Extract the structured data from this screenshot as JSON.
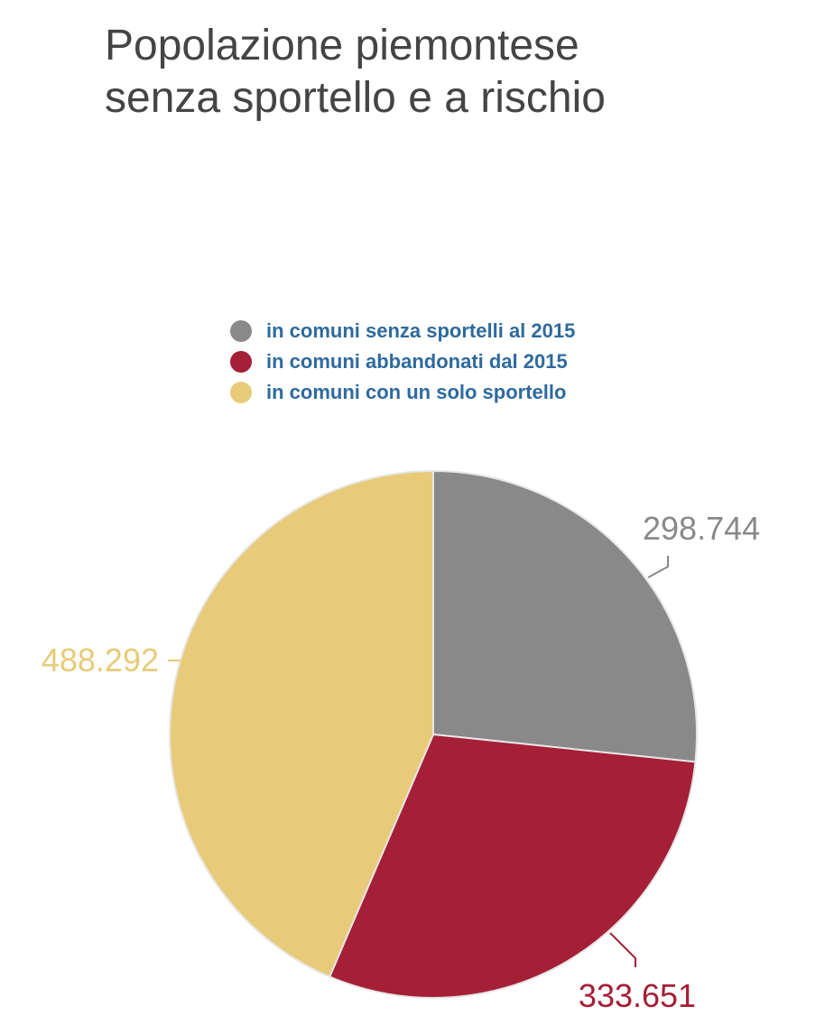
{
  "chart_data": {
    "type": "pie",
    "title": "Popolazione piemontese senza sportello e a rischio",
    "title_lines": [
      "Popolazione piemontese",
      "senza sportello e a rischio"
    ],
    "legend_position": "top-center",
    "slices": [
      {
        "name": "in comuni senza sportelli al 2015",
        "value": 298744,
        "label": "298.744",
        "color": "#898989"
      },
      {
        "name": "in comuni abbandonati dal 2015",
        "value": 333651,
        "label": "333.651",
        "color": "#a51f36"
      },
      {
        "name": "in comuni con un solo sportello",
        "value": 488292,
        "label": "488.292",
        "color": "#e8cb79"
      }
    ]
  }
}
